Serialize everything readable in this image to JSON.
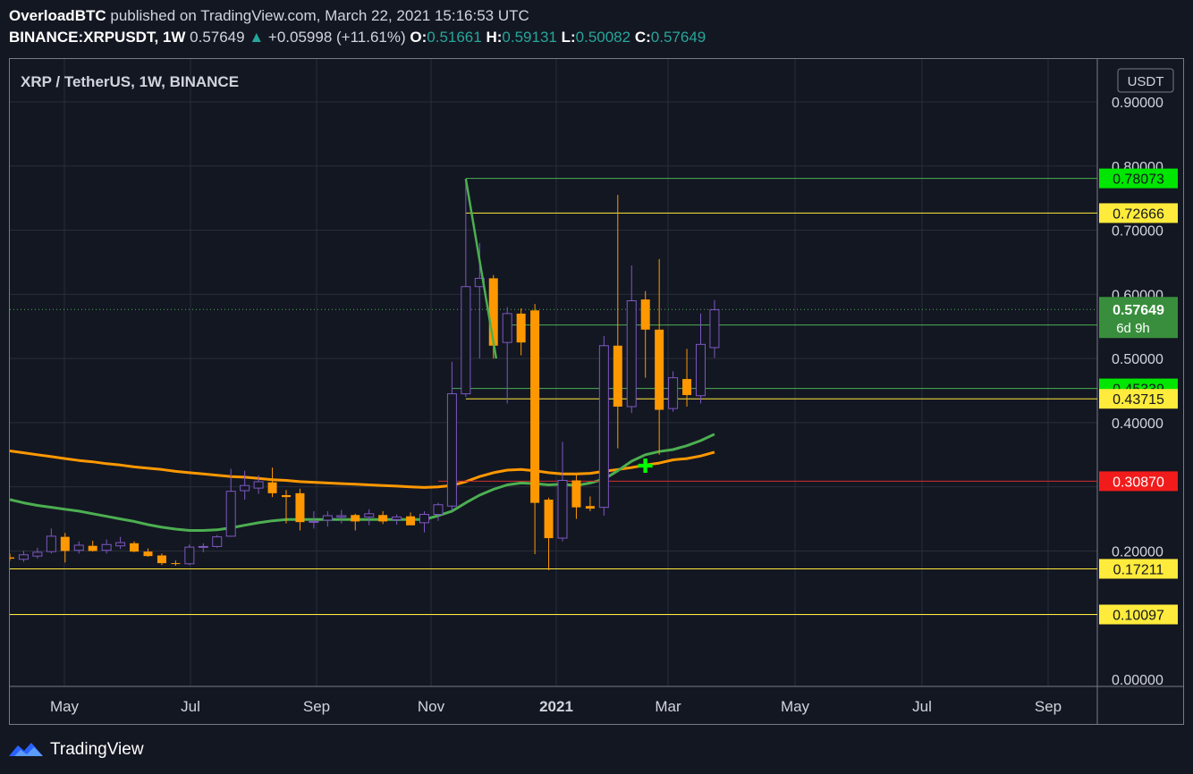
{
  "header": {
    "author": "OverloadBTC",
    "published": "published on TradingView.com, March 22, 2021 15:16:53 UTC",
    "symbol": "BINANCE:XRPUSDT, 1W",
    "last": "0.57649",
    "change": "+0.05998 (+11.61%)",
    "o_label": "O:",
    "o": "0.51661",
    "h_label": "H:",
    "h": "0.59131",
    "l_label": "L:",
    "l": "0.50082",
    "c_label": "C:",
    "c": "0.57649"
  },
  "footer": {
    "brand": "TradingView",
    "logo_icon": "tradingview-logo-icon"
  },
  "chart_data": {
    "type": "candlestick",
    "title": "XRP / TetherUS, 1W, BINANCE",
    "currency": "USDT",
    "ylim": [
      0,
      0.93
    ],
    "y_ticks": [
      "0.90000",
      "0.80000",
      "0.70000",
      "0.60000",
      "0.50000",
      "0.40000",
      "0.20000",
      "0.00000"
    ],
    "x_ticks": [
      "May",
      "Jul",
      "Sep",
      "Nov",
      "2021",
      "Mar",
      "May",
      "Jul",
      "Sep"
    ],
    "x_ticks_bold": [
      "2021"
    ],
    "countdown": "6d 9h",
    "colors": {
      "bull": "#7e57c2",
      "bear": "#ff9800",
      "grid": "#2a2e39",
      "background": "#131722"
    },
    "candles": [
      {
        "o": 0.19,
        "h": 0.196,
        "l": 0.185,
        "c": 0.188
      },
      {
        "o": 0.187,
        "h": 0.2,
        "l": 0.183,
        "c": 0.194
      },
      {
        "o": 0.192,
        "h": 0.205,
        "l": 0.188,
        "c": 0.198
      },
      {
        "o": 0.199,
        "h": 0.235,
        "l": 0.196,
        "c": 0.223
      },
      {
        "o": 0.222,
        "h": 0.228,
        "l": 0.182,
        "c": 0.2
      },
      {
        "o": 0.201,
        "h": 0.215,
        "l": 0.196,
        "c": 0.209
      },
      {
        "o": 0.208,
        "h": 0.216,
        "l": 0.199,
        "c": 0.2
      },
      {
        "o": 0.201,
        "h": 0.218,
        "l": 0.196,
        "c": 0.21
      },
      {
        "o": 0.208,
        "h": 0.222,
        "l": 0.203,
        "c": 0.213
      },
      {
        "o": 0.212,
        "h": 0.215,
        "l": 0.198,
        "c": 0.199
      },
      {
        "o": 0.199,
        "h": 0.204,
        "l": 0.191,
        "c": 0.192
      },
      {
        "o": 0.193,
        "h": 0.196,
        "l": 0.178,
        "c": 0.181
      },
      {
        "o": 0.181,
        "h": 0.185,
        "l": 0.177,
        "c": 0.18
      },
      {
        "o": 0.18,
        "h": 0.21,
        "l": 0.178,
        "c": 0.206
      },
      {
        "o": 0.206,
        "h": 0.212,
        "l": 0.198,
        "c": 0.207
      },
      {
        "o": 0.207,
        "h": 0.225,
        "l": 0.205,
        "c": 0.222
      },
      {
        "o": 0.223,
        "h": 0.328,
        "l": 0.222,
        "c": 0.293
      },
      {
        "o": 0.294,
        "h": 0.325,
        "l": 0.28,
        "c": 0.302
      },
      {
        "o": 0.298,
        "h": 0.318,
        "l": 0.289,
        "c": 0.308
      },
      {
        "o": 0.307,
        "h": 0.33,
        "l": 0.284,
        "c": 0.29
      },
      {
        "o": 0.287,
        "h": 0.295,
        "l": 0.243,
        "c": 0.284
      },
      {
        "o": 0.29,
        "h": 0.297,
        "l": 0.232,
        "c": 0.245
      },
      {
        "o": 0.246,
        "h": 0.262,
        "l": 0.235,
        "c": 0.246
      },
      {
        "o": 0.248,
        "h": 0.262,
        "l": 0.238,
        "c": 0.255
      },
      {
        "o": 0.253,
        "h": 0.264,
        "l": 0.243,
        "c": 0.255
      },
      {
        "o": 0.256,
        "h": 0.258,
        "l": 0.232,
        "c": 0.246
      },
      {
        "o": 0.253,
        "h": 0.265,
        "l": 0.24,
        "c": 0.258
      },
      {
        "o": 0.256,
        "h": 0.262,
        "l": 0.242,
        "c": 0.246
      },
      {
        "o": 0.249,
        "h": 0.257,
        "l": 0.241,
        "c": 0.253
      },
      {
        "o": 0.254,
        "h": 0.26,
        "l": 0.246,
        "c": 0.24
      },
      {
        "o": 0.244,
        "h": 0.262,
        "l": 0.229,
        "c": 0.257
      },
      {
        "o": 0.257,
        "h": 0.275,
        "l": 0.247,
        "c": 0.272
      },
      {
        "o": 0.27,
        "h": 0.495,
        "l": 0.263,
        "c": 0.445
      },
      {
        "o": 0.445,
        "h": 0.78,
        "l": 0.44,
        "c": 0.612
      },
      {
        "o": 0.612,
        "h": 0.68,
        "l": 0.5,
        "c": 0.625
      },
      {
        "o": 0.625,
        "h": 0.63,
        "l": 0.5,
        "c": 0.52
      },
      {
        "o": 0.525,
        "h": 0.58,
        "l": 0.43,
        "c": 0.57
      },
      {
        "o": 0.57,
        "h": 0.578,
        "l": 0.505,
        "c": 0.525
      },
      {
        "o": 0.575,
        "h": 0.585,
        "l": 0.195,
        "c": 0.275
      },
      {
        "o": 0.28,
        "h": 0.283,
        "l": 0.17,
        "c": 0.22
      },
      {
        "o": 0.22,
        "h": 0.37,
        "l": 0.215,
        "c": 0.31
      },
      {
        "o": 0.31,
        "h": 0.32,
        "l": 0.25,
        "c": 0.268
      },
      {
        "o": 0.27,
        "h": 0.285,
        "l": 0.262,
        "c": 0.266
      },
      {
        "o": 0.268,
        "h": 0.535,
        "l": 0.255,
        "c": 0.52
      },
      {
        "o": 0.52,
        "h": 0.755,
        "l": 0.36,
        "c": 0.425
      },
      {
        "o": 0.425,
        "h": 0.645,
        "l": 0.415,
        "c": 0.59
      },
      {
        "o": 0.592,
        "h": 0.605,
        "l": 0.47,
        "c": 0.545
      },
      {
        "o": 0.545,
        "h": 0.655,
        "l": 0.35,
        "c": 0.42
      },
      {
        "o": 0.422,
        "h": 0.48,
        "l": 0.417,
        "c": 0.47
      },
      {
        "o": 0.468,
        "h": 0.515,
        "l": 0.425,
        "c": 0.443
      },
      {
        "o": 0.442,
        "h": 0.57,
        "l": 0.43,
        "c": 0.522
      },
      {
        "o": 0.517,
        "h": 0.591,
        "l": 0.501,
        "c": 0.576
      }
    ],
    "levels": [
      {
        "label": "0.78073",
        "value": 0.78073,
        "color": "#00e600",
        "line": "#4caf50",
        "start": 33
      },
      {
        "label": "0.72666",
        "value": 0.72666,
        "color": "#ffeb3b",
        "line": "#ffeb3b",
        "start": 33
      },
      {
        "label": "0.55225",
        "value": 0.55225,
        "color": "#00e600",
        "line": "#4caf50",
        "start": 36
      },
      {
        "label": "0.45339",
        "value": 0.45339,
        "color": "#00e600",
        "line": "#4caf50",
        "start": 32
      },
      {
        "label": "0.43715",
        "value": 0.43715,
        "color": "#ffeb3b",
        "line": "#ffeb3b",
        "start": 33
      },
      {
        "label": "0.30870",
        "value": 0.3087,
        "color": "#f21b1b",
        "line": "#d32f2f",
        "start": 31
      },
      {
        "label": "0.17211",
        "value": 0.17211,
        "color": "#ffeb3b",
        "line": "#ffeb3b",
        "start": -1
      },
      {
        "label": "0.10097",
        "value": 0.10097,
        "color": "#ffeb3b",
        "line": "#ffeb3b",
        "start": -1
      }
    ],
    "last_price": {
      "label": "0.57649",
      "value": 0.57649,
      "color": "#388e3c"
    },
    "ma_orange": {
      "color": "#ff9800",
      "values": [
        0.356,
        0.353,
        0.35,
        0.347,
        0.344,
        0.341,
        0.339,
        0.336,
        0.334,
        0.331,
        0.329,
        0.327,
        0.324,
        0.322,
        0.32,
        0.318,
        0.316,
        0.315,
        0.313,
        0.311,
        0.31,
        0.308,
        0.307,
        0.306,
        0.305,
        0.304,
        0.303,
        0.302,
        0.301,
        0.3,
        0.299,
        0.3,
        0.302,
        0.308,
        0.316,
        0.322,
        0.326,
        0.327,
        0.325,
        0.322,
        0.32,
        0.32,
        0.321,
        0.324,
        0.327,
        0.33,
        0.334,
        0.337,
        0.342,
        0.344,
        0.348,
        0.354
      ]
    },
    "ma_green": {
      "color": "#4caf50",
      "values": [
        0.28,
        0.275,
        0.271,
        0.268,
        0.265,
        0.262,
        0.258,
        0.254,
        0.25,
        0.246,
        0.241,
        0.237,
        0.234,
        0.232,
        0.232,
        0.233,
        0.236,
        0.24,
        0.244,
        0.247,
        0.249,
        0.249,
        0.249,
        0.249,
        0.249,
        0.249,
        0.249,
        0.249,
        0.249,
        0.249,
        0.249,
        0.255,
        0.262,
        0.275,
        0.287,
        0.296,
        0.303,
        0.306,
        0.305,
        0.303,
        0.304,
        0.302,
        0.306,
        0.312,
        0.325,
        0.34,
        0.35,
        0.355,
        0.358,
        0.364,
        0.372,
        0.382
      ]
    },
    "trend_line": {
      "color": "#4caf50",
      "from": {
        "i": 33,
        "v": 0.78
      },
      "to": {
        "i": 35.2,
        "v": 0.5
      }
    },
    "marker": {
      "symbol": "✚",
      "color": "#00ff00",
      "i": 46,
      "v": 0.333
    }
  }
}
